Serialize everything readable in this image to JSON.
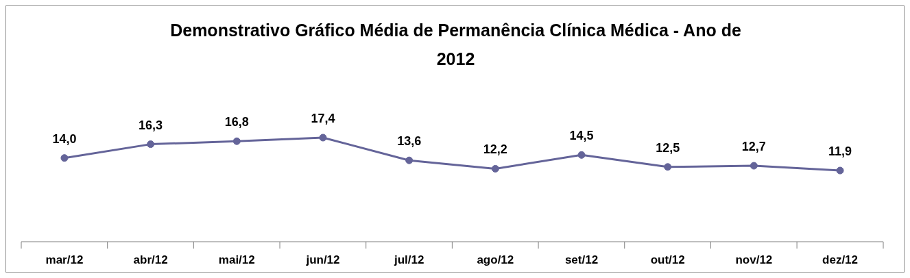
{
  "chart_data": {
    "type": "line",
    "title": "Demonstrativo Gráfico Média de Permanência Clínica Médica - Ano de 2012",
    "categories": [
      "mar/12",
      "abr/12",
      "mai/12",
      "jun/12",
      "jul/12",
      "ago/12",
      "set/12",
      "out/12",
      "nov/12",
      "dez/12"
    ],
    "series": [
      {
        "color": "#646499",
        "values": [
          14.0,
          16.3,
          16.8,
          17.4,
          13.6,
          12.2,
          14.5,
          12.5,
          12.7,
          11.9
        ],
        "value_labels": [
          "14,0",
          "16,3",
          "16,8",
          "17,4",
          "13,6",
          "12,2",
          "14,5",
          "12,5",
          "12,7",
          "11,9"
        ]
      }
    ],
    "marker": "circle",
    "line_style": "solid",
    "grid": false,
    "legend": false
  }
}
